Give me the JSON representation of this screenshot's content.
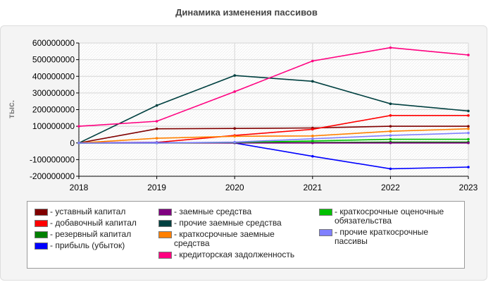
{
  "chart_data": {
    "type": "line",
    "title": "Динамика изменения пассивов",
    "ylabel": "тыс.",
    "xlabel": "",
    "x": [
      "2018",
      "2019",
      "2020",
      "2021",
      "2022",
      "2023"
    ],
    "ylim": [
      -200000000,
      600000000
    ],
    "yticks": [
      "600000000",
      "500000000",
      "400000000",
      "300000000",
      "200000000",
      "100000000",
      "0",
      "-100000000",
      "-200000000"
    ],
    "grid": true,
    "legend_position": "bottom",
    "series": [
      {
        "name": "уставный капитал",
        "color": "#800000",
        "values": [
          0,
          85000000,
          87000000,
          90000000,
          100000000,
          100000000
        ]
      },
      {
        "name": "добавочный капитал",
        "color": "#ff0000",
        "values": [
          0,
          3000000,
          45000000,
          82000000,
          165000000,
          165000000
        ]
      },
      {
        "name": "резервный капитал",
        "color": "#008000",
        "values": [
          0,
          0,
          2000000,
          3000000,
          5000000,
          5000000
        ]
      },
      {
        "name": "прибыль (убыток)",
        "color": "#0000ff",
        "values": [
          0,
          2000000,
          0,
          -80000000,
          -155000000,
          -145000000
        ]
      },
      {
        "name": "заемные средства",
        "color": "#800080",
        "values": [
          0,
          0,
          0,
          0,
          0,
          0
        ]
      },
      {
        "name": "прочие заемные средства",
        "color": "#004040",
        "values": [
          0,
          225000000,
          405000000,
          370000000,
          235000000,
          192000000
        ]
      },
      {
        "name": "краткосрочные заемные средства",
        "color": "#ff8000",
        "values": [
          0,
          28000000,
          40000000,
          42000000,
          70000000,
          85000000
        ]
      },
      {
        "name": "кредиторская задолженность",
        "color": "#ff0080",
        "values": [
          100000000,
          130000000,
          308000000,
          492000000,
          572000000,
          528000000
        ]
      },
      {
        "name": "краткосрочные оценочные обязательства",
        "color": "#00c000",
        "values": [
          0,
          0,
          3000000,
          12000000,
          22000000,
          22000000
        ]
      },
      {
        "name": "прочие краткосрочные пассивы",
        "color": "#8080ff",
        "values": [
          0,
          0,
          5000000,
          25000000,
          45000000,
          60000000
        ]
      }
    ]
  },
  "legend_columns": [
    [
      "уставный капитал",
      "добавочный капитал",
      "резервный капитал",
      "прибыль (убыток)"
    ],
    [
      "заемные средства",
      "прочие заемные средства",
      "краткосрочные заемные средства",
      "кредиторская задолженность"
    ],
    [
      "краткосрочные оценочные обязательства",
      "прочие краткосрочные пассивы"
    ]
  ]
}
